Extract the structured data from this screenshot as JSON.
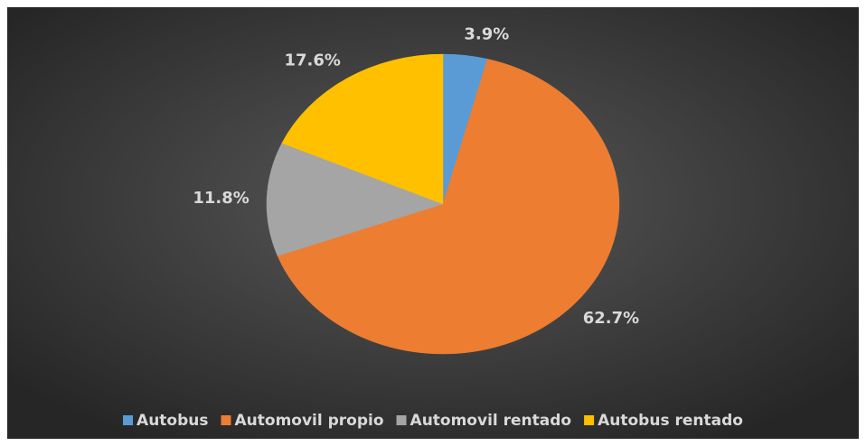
{
  "chart_data": {
    "type": "pie",
    "categories": [
      "Autobus",
      "Automovil propio",
      "Automovil rentado",
      "Autobus rentado"
    ],
    "values": [
      3.9,
      62.7,
      11.8,
      17.6
    ],
    "value_labels": [
      "3.9%",
      "62.7%",
      "11.8%",
      "17.6%"
    ],
    "colors": [
      "#5b9bd5",
      "#ed7d31",
      "#a5a5a5",
      "#ffc000"
    ],
    "legend": "bottom"
  }
}
